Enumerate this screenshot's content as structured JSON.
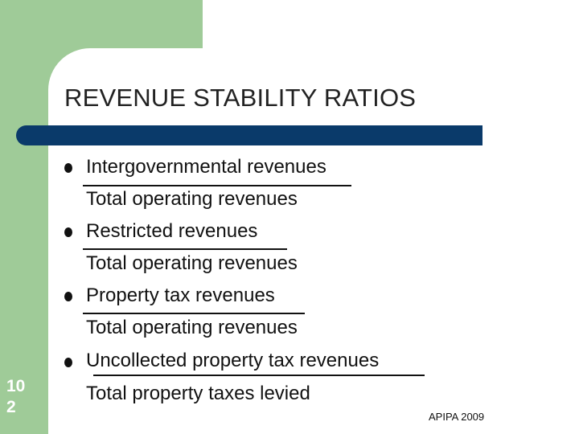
{
  "slide": {
    "title": "REVENUE STABILITY RATIOS",
    "slide_number_line1": "10",
    "slide_number_line2": "2",
    "footer": "APIPA 2009"
  },
  "ratios": [
    {
      "numerator": "Intergovernmental revenues",
      "denominator": "Total operating revenues"
    },
    {
      "numerator": "Restricted revenues",
      "denominator": "Total operating revenues"
    },
    {
      "numerator": "Property tax revenues",
      "denominator": "Total operating revenues"
    },
    {
      "numerator": "Uncollected property tax revenues",
      "denominator": "Total property taxes levied"
    }
  ],
  "colors": {
    "green": "#9fcb98",
    "navy": "#0a3a6a",
    "text": "#111111"
  }
}
